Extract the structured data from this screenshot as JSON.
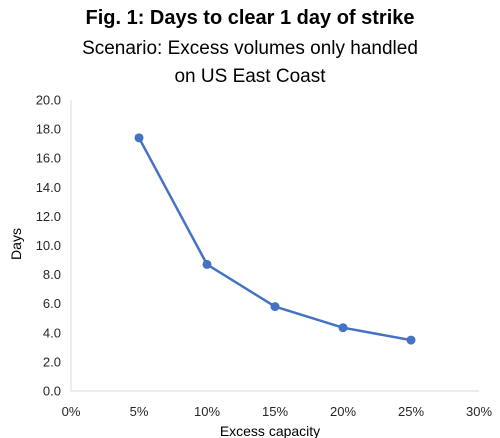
{
  "chart_data": {
    "type": "line",
    "title": "Fig. 1: Days to clear 1 day of strike",
    "subtitle_line1": "Scenario: Excess volumes only handled",
    "subtitle_line2": "on US East Coast",
    "xlabel": "Excess capacity",
    "ylabel": "Days",
    "xlim": [
      0,
      30
    ],
    "ylim": [
      0,
      20
    ],
    "x_ticks": [
      "0%",
      "5%",
      "10%",
      "15%",
      "20%",
      "25%",
      "30%"
    ],
    "y_ticks": [
      "0.0",
      "2.0",
      "4.0",
      "6.0",
      "8.0",
      "10.0",
      "12.0",
      "14.0",
      "16.0",
      "18.0",
      "20.0"
    ],
    "grid": false,
    "legend": "none",
    "series": [
      {
        "x": [
          5,
          10,
          15,
          20,
          25
        ],
        "y": [
          17.4,
          8.7,
          5.8,
          4.35,
          3.5
        ]
      }
    ],
    "line_color": "#4472C4",
    "axis_color": "#d9d9d9"
  }
}
